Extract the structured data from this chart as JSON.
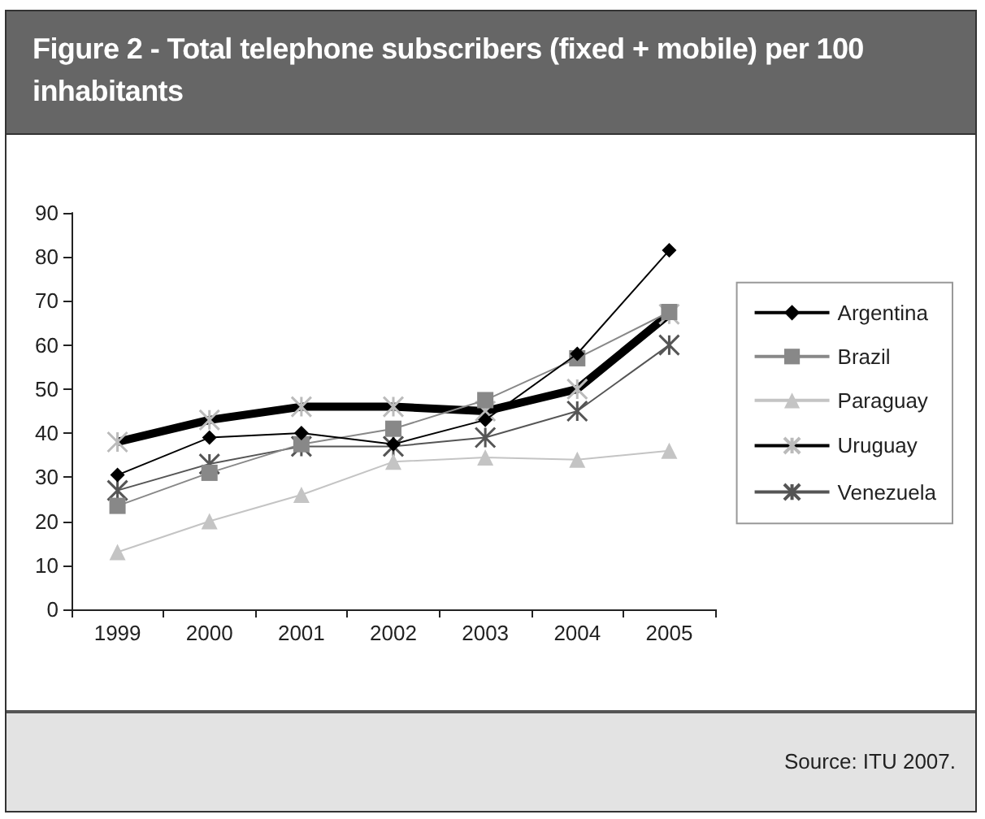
{
  "chart_data": {
    "type": "line",
    "title": "Figure 2 - Total telephone subscribers (fixed + mobile) per 100 inhabitants",
    "categories": [
      "1999",
      "2000",
      "2001",
      "2002",
      "2003",
      "2004",
      "2005"
    ],
    "series": [
      {
        "name": "Argentina",
        "color": "#000000",
        "marker": "diamond",
        "values": [
          30.5,
          39,
          40,
          37.5,
          43,
          58,
          81.5
        ]
      },
      {
        "name": "Brazil",
        "color": "#888888",
        "marker": "square",
        "values": [
          23.5,
          31,
          37.5,
          41,
          47.5,
          57,
          67.5
        ]
      },
      {
        "name": "Paraguay",
        "color": "#c4c4c4",
        "marker": "triangle",
        "values": [
          13,
          20,
          26,
          33.5,
          34.5,
          34,
          36
        ]
      },
      {
        "name": "Uruguay",
        "color": "#000000",
        "marker": "cross",
        "values": [
          38,
          43,
          46,
          46,
          45,
          50,
          67
        ]
      },
      {
        "name": "Venezuela",
        "color": "#555555",
        "marker": "cross",
        "values": [
          27,
          33,
          37,
          37,
          39,
          45,
          60
        ]
      }
    ],
    "ylim": [
      0,
      90
    ],
    "yticks": [
      0,
      10,
      20,
      30,
      40,
      50,
      60,
      70,
      80,
      90
    ],
    "grid": false,
    "legend": "right",
    "annotations": [
      "Source: ITU 2007."
    ]
  }
}
